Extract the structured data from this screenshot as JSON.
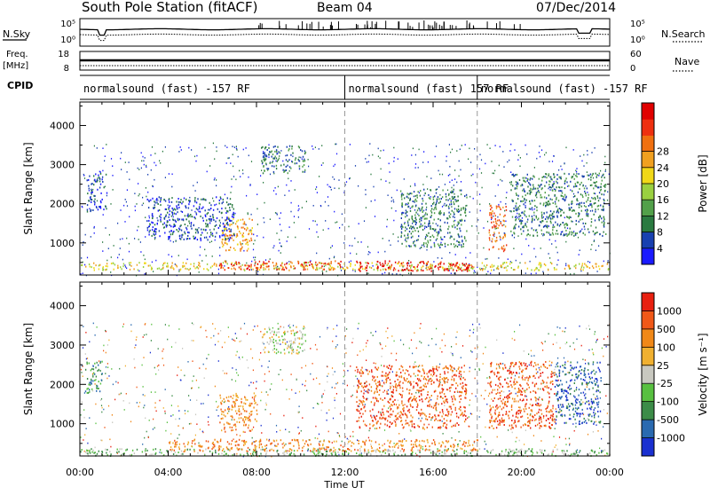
{
  "header": {
    "station": "South Pole Station (fitACF)",
    "beam": "Beam 04",
    "date": "07/Dec/2014"
  },
  "strip_labels": {
    "nsky": "N.Sky",
    "nsky_ticks": [
      "10^5",
      "10^0"
    ],
    "nsearch": "N.Search",
    "nsearch_ticks": [
      "10^5",
      "10^0"
    ],
    "freq": "Freq.",
    "freq_unit": "[MHz]",
    "freq_ticks": [
      "18",
      "8"
    ],
    "nave": "Nave",
    "nave_ticks": [
      "60",
      "0"
    ],
    "cpid": "CPID"
  },
  "cpid_segments": [
    {
      "label": "normalsound (fast) -157 RF",
      "start_h": 0
    },
    {
      "label": "normalsound (fast) 157 RF",
      "start_h": 12
    },
    {
      "label": "normalsound (fast) -157 RF",
      "start_h": 18
    }
  ],
  "chart_data": [
    {
      "type": "heatmap",
      "panel": "power",
      "ylabel": "Slant Range [km]",
      "xlabel": "Time UT",
      "x_ticks": [
        "00:00",
        "04:00",
        "08:00",
        "12:00",
        "16:00",
        "20:00",
        "00:00"
      ],
      "xlim_hours": [
        0,
        24
      ],
      "y_ticks": [
        1000,
        2000,
        3000,
        4000
      ],
      "ylim": [
        180,
        4600
      ],
      "colorbar": {
        "label": "Power [dB]",
        "ticks": [
          "4",
          "8",
          "12",
          "16",
          "20",
          "24",
          "28"
        ],
        "colors": [
          "#1a1aff",
          "#1840b0",
          "#2a7a40",
          "#52a04a",
          "#9ad040",
          "#f0d818",
          "#f0a020",
          "#f07010",
          "#ee3010",
          "#e00000"
        ]
      },
      "dashed_hours": [
        12,
        18
      ],
      "echo_regions": [
        {
          "t0": 0.0,
          "t1": 24.0,
          "r0": 320,
          "r1": 520,
          "level": 5
        },
        {
          "t0": 6.3,
          "t1": 11.8,
          "r0": 330,
          "r1": 560,
          "level": 8
        },
        {
          "t0": 12.5,
          "t1": 17.8,
          "r0": 300,
          "r1": 560,
          "level": 9
        },
        {
          "t0": 18.5,
          "t1": 19.3,
          "r0": 800,
          "r1": 2000,
          "level": 7
        },
        {
          "t0": 6.4,
          "t1": 7.8,
          "r0": 800,
          "r1": 1700,
          "level": 6
        },
        {
          "t0": 8.2,
          "t1": 10.2,
          "r0": 2800,
          "r1": 3500,
          "level": 2
        },
        {
          "t0": 3.0,
          "t1": 7.0,
          "r0": 1100,
          "r1": 2200,
          "level": 1
        },
        {
          "t0": 0.3,
          "t1": 1.2,
          "r0": 1800,
          "r1": 2800,
          "level": 1
        },
        {
          "t0": 19.5,
          "t1": 23.8,
          "r0": 1200,
          "r1": 2800,
          "level": 2
        },
        {
          "t0": 14.5,
          "t1": 17.5,
          "r0": 900,
          "r1": 2400,
          "level": 2
        }
      ]
    },
    {
      "type": "heatmap",
      "panel": "velocity",
      "ylabel": "Slant Range [km]",
      "xlabel": "Time UT",
      "x_ticks": [
        "00:00",
        "04:00",
        "08:00",
        "12:00",
        "16:00",
        "20:00",
        "00:00"
      ],
      "xlim_hours": [
        0,
        24
      ],
      "y_ticks": [
        1000,
        2000,
        3000,
        4000
      ],
      "ylim": [
        180,
        4600
      ],
      "colorbar": {
        "label": "Velocity [m s^-1]",
        "ticks": [
          "1000",
          "500",
          "100",
          "25",
          "-25",
          "-100",
          "-500",
          "-1000"
        ],
        "colors": [
          "#1a30d0",
          "#2a6ab0",
          "#3c8c48",
          "#58c040",
          "#c8c8c0",
          "#f0b030",
          "#f08818",
          "#f05818",
          "#e82010"
        ]
      },
      "dashed_hours": [
        12,
        18
      ],
      "echo_regions": [
        {
          "t0": 0.0,
          "t1": 24.0,
          "r0": 200,
          "r1": 380,
          "level": 3
        },
        {
          "t0": 4.0,
          "t1": 18.0,
          "r0": 320,
          "r1": 620,
          "level": 6
        },
        {
          "t0": 6.3,
          "t1": 8.0,
          "r0": 800,
          "r1": 1800,
          "level": 6
        },
        {
          "t0": 8.2,
          "t1": 10.2,
          "r0": 2800,
          "r1": 3500,
          "level": 4
        },
        {
          "t0": 0.2,
          "t1": 1.0,
          "r0": 1800,
          "r1": 2600,
          "level": 2
        },
        {
          "t0": 18.5,
          "t1": 21.5,
          "r0": 900,
          "r1": 2600,
          "level": 7
        },
        {
          "t0": 21.5,
          "t1": 23.6,
          "r0": 1000,
          "r1": 2600,
          "level": 1
        },
        {
          "t0": 12.5,
          "t1": 17.5,
          "r0": 900,
          "r1": 2500,
          "level": 7
        }
      ]
    }
  ],
  "footer": {
    "xlabel": "Time UT"
  }
}
